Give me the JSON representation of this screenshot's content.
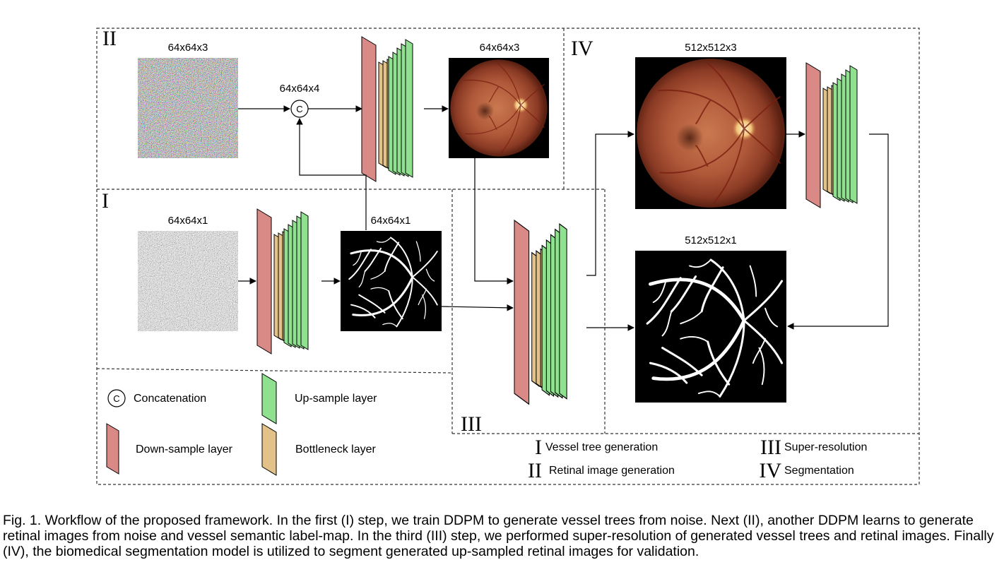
{
  "dims": {
    "noise_rgb": "64x64x3",
    "concat": "64x64x4",
    "gen_retina": "64x64x3",
    "noise_gray": "64x64x1",
    "gen_vessel": "64x64x1",
    "sr_retina": "512x512x3",
    "sr_vessel": "512x512x1"
  },
  "steps": {
    "I": "I",
    "II": "II",
    "III": "III",
    "IV": "IV"
  },
  "concat_symbol": "C",
  "legend": {
    "concat_symbol": "C",
    "concatenation": "Concatenation",
    "upsample": "Up-sample layer",
    "downsample": "Down-sample layer",
    "bottleneck": "Bottleneck layer"
  },
  "step_legend": [
    {
      "numeral": "I",
      "label": "Vessel tree generation"
    },
    {
      "numeral": "II",
      "label": "Retinal image generation"
    },
    {
      "numeral": "III",
      "label": "Super-resolution"
    },
    {
      "numeral": "IV",
      "label": "Segmentation"
    }
  ],
  "colors": {
    "downsample": "#d98a86",
    "bottleneck": "#e3c289",
    "upsample": "#8fe08f"
  },
  "caption": "Fig. 1. Workflow of the proposed framework. In the first (I) step, we train DDPM to generate vessel trees from noise. Next (II), another DDPM learns to generate retinal images from noise and vessel semantic label-map. In the third (III) step, we performed super-resolution of generated vessel trees and retinal images. Finally (IV), the biomedical segmentation model is utilized to segment generated up-sampled retinal images for validation."
}
